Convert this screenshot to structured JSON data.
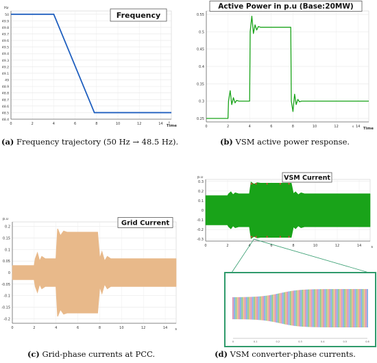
{
  "colors": {
    "frequency": "#1f5fbf",
    "power": "#19a319",
    "grid_current": "#e8b98a",
    "vsm_current": "#19a319",
    "zoom_frame": "#2f9a6b",
    "connector": "#2f9a6b"
  },
  "panels": {
    "a": {
      "caption_tag": "(a)",
      "caption_text": " Frequency trajectory (50 Hz → 48.5 Hz)."
    },
    "b": {
      "caption_tag": "(b)",
      "caption_text": " VSM active power response."
    },
    "c": {
      "caption_tag": "(c)",
      "caption_text": " Grid-phase currents at PCC."
    },
    "d": {
      "caption_tag": "(d)",
      "caption_text": " VSM converter-phase currents."
    }
  },
  "chart_data": [
    {
      "id": "frequency",
      "type": "line",
      "title": "Frequency",
      "ylabel": "Hz",
      "xlabel": "Time",
      "xlim": [
        0,
        15
      ],
      "ylim": [
        48.4,
        50.05
      ],
      "xticks": [
        "0",
        "2",
        "4",
        "6",
        "8",
        "10",
        "12",
        "14"
      ],
      "xtick_values": [
        0,
        2,
        4,
        6,
        8,
        10,
        12,
        14
      ],
      "yticks": [
        "50",
        "49.9",
        "49.8",
        "49.7",
        "49.6",
        "49.5",
        "49.4",
        "49.3",
        "49.2",
        "49.1",
        "49",
        "48.9",
        "48.8",
        "48.7",
        "48.6",
        "48.5",
        "48.4"
      ],
      "ytick_values": [
        50,
        49.9,
        49.8,
        49.7,
        49.6,
        49.5,
        49.4,
        49.3,
        49.2,
        49.1,
        49,
        48.9,
        48.8,
        48.7,
        48.6,
        48.5,
        48.4
      ],
      "extra_xlabel": "s",
      "x": [
        0,
        4,
        7.8,
        15
      ],
      "y": [
        50,
        50,
        48.5,
        48.5
      ]
    },
    {
      "id": "power",
      "type": "line",
      "title": "Active Power in p.u (Base:20MW)",
      "xlabel": "Time",
      "xlim": [
        0,
        15
      ],
      "ylim": [
        0.24,
        0.56
      ],
      "xticks": [
        "0",
        "2",
        "4",
        "6",
        "8",
        "10",
        "12",
        "14"
      ],
      "xtick_values": [
        0,
        2,
        4,
        6,
        8,
        10,
        12,
        14
      ],
      "yticks": [
        "0.55",
        "0.5",
        "0.45",
        "0.4",
        "0.35",
        "0.3",
        "0.25"
      ],
      "ytick_values": [
        0.55,
        0.5,
        0.45,
        0.4,
        0.35,
        0.3,
        0.25
      ],
      "extra_xlabel": "s",
      "x": [
        0,
        2.0,
        2.05,
        2.2,
        2.35,
        2.5,
        2.65,
        2.8,
        3.0,
        4.0,
        4.05,
        4.2,
        4.35,
        4.5,
        4.65,
        4.8,
        5.0,
        7.8,
        7.85,
        8.0,
        8.15,
        8.3,
        8.45,
        8.6,
        8.8,
        15
      ],
      "y": [
        0.25,
        0.25,
        0.3,
        0.33,
        0.29,
        0.31,
        0.295,
        0.302,
        0.3,
        0.3,
        0.5,
        0.545,
        0.495,
        0.52,
        0.505,
        0.515,
        0.513,
        0.513,
        0.3,
        0.27,
        0.32,
        0.29,
        0.305,
        0.298,
        0.3,
        0.3
      ]
    },
    {
      "id": "grid_current",
      "type": "area",
      "title": "Grid Current",
      "ylabel": "p.u",
      "xlabel": "s",
      "xlim": [
        0,
        15
      ],
      "ylim": [
        -0.22,
        0.22
      ],
      "xticks": [
        "0",
        "2",
        "4",
        "6",
        "8",
        "10",
        "12",
        "14"
      ],
      "xtick_values": [
        0,
        2,
        4,
        6,
        8,
        10,
        12,
        14
      ],
      "yticks": [
        "0.2",
        "0.15",
        "0.1",
        "0.05",
        "0",
        "-0.05",
        "-0.1",
        "-0.15",
        "-0.2"
      ],
      "ytick_values": [
        0.2,
        0.15,
        0.1,
        0.05,
        0,
        -0.05,
        -0.1,
        -0.15,
        -0.2
      ],
      "x": [
        0,
        2.0,
        2.1,
        2.3,
        2.5,
        2.7,
        3.0,
        4.0,
        4.15,
        4.4,
        4.7,
        5.0,
        7.8,
        8.0,
        8.2,
        8.45,
        8.7,
        9.0,
        15
      ],
      "envelope": [
        0.03,
        0.03,
        0.06,
        0.085,
        0.05,
        0.07,
        0.06,
        0.06,
        0.19,
        0.16,
        0.18,
        0.175,
        0.175,
        0.06,
        0.09,
        0.05,
        0.07,
        0.06,
        0.06
      ]
    },
    {
      "id": "vsm_current",
      "type": "area",
      "title": "VSM Current",
      "ylabel": "p.u",
      "xlabel": "s",
      "xlim": [
        0,
        15
      ],
      "ylim": [
        -0.32,
        0.32
      ],
      "xticks": [
        "0",
        "2",
        "4",
        "6",
        "8",
        "10",
        "12",
        "14"
      ],
      "xtick_values": [
        0,
        2,
        4,
        6,
        8,
        10,
        12,
        14
      ],
      "yticks": [
        "0.3",
        "0.2",
        "0.1",
        "0",
        "-0.1",
        "-0.2",
        "-0.3"
      ],
      "ytick_values": [
        0.3,
        0.2,
        0.1,
        0,
        -0.1,
        -0.2,
        -0.3
      ],
      "x": [
        0,
        2.0,
        2.1,
        2.3,
        2.5,
        2.7,
        3.0,
        4.0,
        4.15,
        4.4,
        4.7,
        5.0,
        7.8,
        8.0,
        8.2,
        8.45,
        8.7,
        9.0,
        15
      ],
      "envelope": [
        0.15,
        0.15,
        0.17,
        0.19,
        0.16,
        0.18,
        0.17,
        0.17,
        0.29,
        0.27,
        0.285,
        0.28,
        0.28,
        0.17,
        0.19,
        0.16,
        0.18,
        0.17,
        0.17
      ]
    }
  ],
  "zoom": {
    "xticks": [
      "0",
      "0.1",
      "0.2",
      "0.3",
      "0.4",
      "0.5",
      "0.6"
    ]
  }
}
